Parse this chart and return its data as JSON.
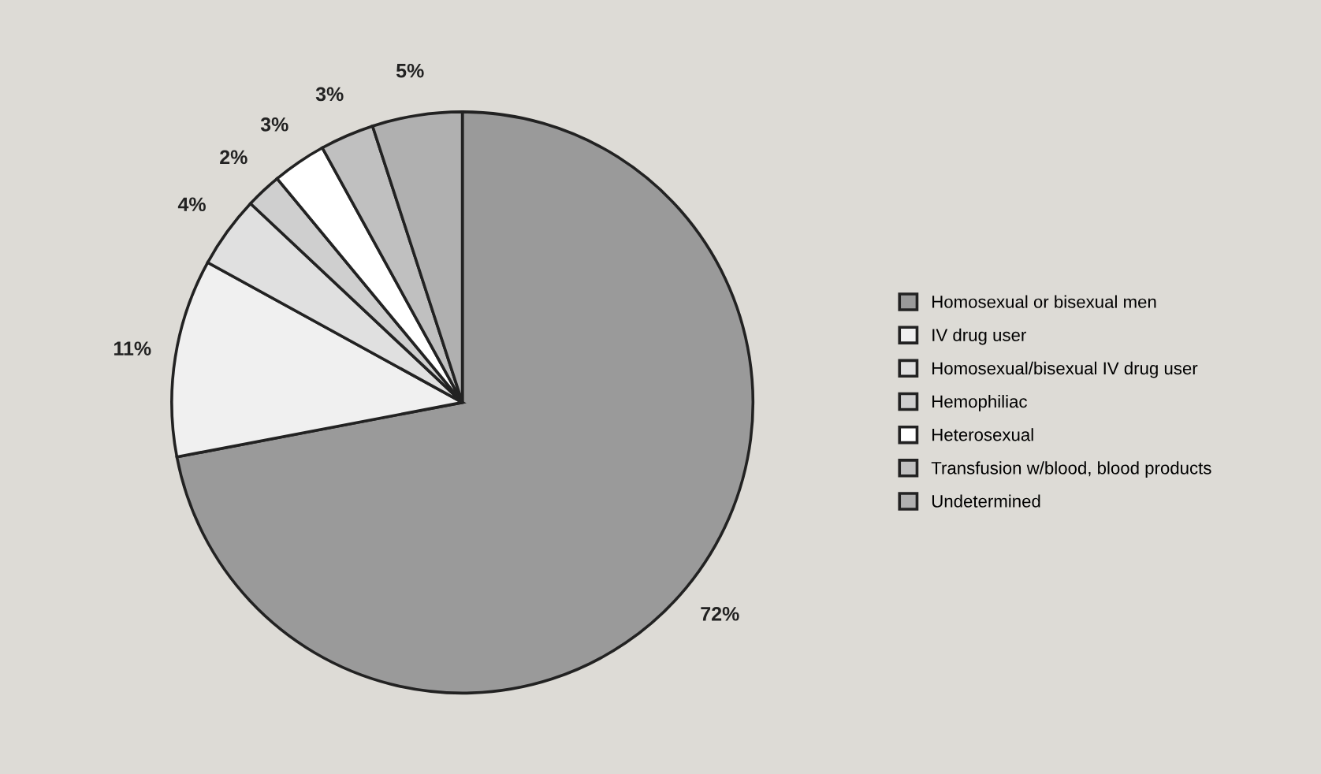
{
  "chart_data": {
    "type": "pie",
    "categories": [
      "Homosexual or bisexual men",
      "IV drug user",
      "Homosexual/bisexual IV drug user",
      "Hemophiliac",
      "Heterosexual",
      "Transfusion w/blood, blood products",
      "Undetermined"
    ],
    "values": [
      72,
      11,
      4,
      2,
      3,
      3,
      5
    ],
    "value_labels": [
      "72%",
      "11%",
      "4%",
      "2%",
      "3%",
      "3%",
      "5%"
    ],
    "colors": [
      "#9a9a9a",
      "#f0f0f0",
      "#e0e0e0",
      "#cfcfcf",
      "#ffffff",
      "#c0c0c0",
      "#b0b0b0"
    ],
    "legend": "right"
  }
}
